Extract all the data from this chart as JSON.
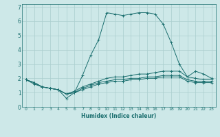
{
  "xlabel": "Humidex (Indice chaleur)",
  "ylabel": "",
  "background_color": "#cde8e8",
  "grid_color": "#aacece",
  "line_color": "#1a6e6e",
  "xlim": [
    -0.5,
    23.5
  ],
  "ylim": [
    0,
    7.2
  ],
  "xticks": [
    0,
    1,
    2,
    3,
    4,
    5,
    6,
    7,
    8,
    9,
    10,
    11,
    12,
    13,
    14,
    15,
    16,
    17,
    18,
    19,
    20,
    21,
    22,
    23
  ],
  "ytick_values": [
    0,
    1,
    2,
    3,
    4,
    5,
    6,
    7
  ],
  "ytick_labels": [
    "0",
    "1",
    "2",
    "3",
    "4",
    "5",
    "6",
    "7"
  ],
  "series": [
    {
      "x": [
        0,
        1,
        2,
        3,
        4,
        5,
        6,
        7,
        8,
        9,
        10,
        11,
        12,
        13,
        14,
        15,
        16,
        17,
        18,
        19,
        20,
        21,
        22,
        23
      ],
      "y": [
        1.9,
        1.6,
        1.4,
        1.3,
        1.2,
        0.6,
        1.0,
        2.2,
        3.6,
        4.7,
        6.6,
        6.5,
        6.4,
        6.5,
        6.6,
        6.6,
        6.5,
        5.8,
        4.5,
        3.0,
        2.1,
        2.5,
        2.3,
        2.0
      ]
    },
    {
      "x": [
        0,
        1,
        2,
        3,
        4,
        5,
        6,
        7,
        8,
        9,
        10,
        11,
        12,
        13,
        14,
        15,
        16,
        17,
        18,
        19,
        20,
        21,
        22,
        23
      ],
      "y": [
        1.9,
        1.7,
        1.4,
        1.3,
        1.2,
        0.9,
        1.1,
        1.4,
        1.6,
        1.8,
        2.0,
        2.1,
        2.1,
        2.2,
        2.3,
        2.3,
        2.4,
        2.5,
        2.5,
        2.5,
        2.1,
        2.0,
        1.9,
        1.9
      ]
    },
    {
      "x": [
        0,
        1,
        2,
        3,
        4,
        5,
        6,
        7,
        8,
        9,
        10,
        11,
        12,
        13,
        14,
        15,
        16,
        17,
        18,
        19,
        20,
        21,
        22,
        23
      ],
      "y": [
        1.9,
        1.7,
        1.4,
        1.3,
        1.2,
        0.9,
        1.0,
        1.3,
        1.5,
        1.7,
        1.8,
        1.9,
        1.9,
        2.0,
        2.0,
        2.1,
        2.1,
        2.2,
        2.2,
        2.2,
        1.9,
        1.8,
        1.8,
        1.8
      ]
    },
    {
      "x": [
        0,
        1,
        2,
        3,
        4,
        5,
        6,
        7,
        8,
        9,
        10,
        11,
        12,
        13,
        14,
        15,
        16,
        17,
        18,
        19,
        20,
        21,
        22,
        23
      ],
      "y": [
        1.9,
        1.7,
        1.4,
        1.3,
        1.2,
        0.9,
        1.0,
        1.2,
        1.4,
        1.6,
        1.7,
        1.8,
        1.8,
        1.9,
        1.9,
        2.0,
        2.0,
        2.1,
        2.1,
        2.1,
        1.8,
        1.7,
        1.7,
        1.7
      ]
    }
  ],
  "xlabel_fontsize": 5.5,
  "xtick_fontsize": 4.5,
  "ytick_fontsize": 5.5,
  "linewidth": 0.7,
  "markersize": 3.0,
  "markeredgewidth": 0.7
}
